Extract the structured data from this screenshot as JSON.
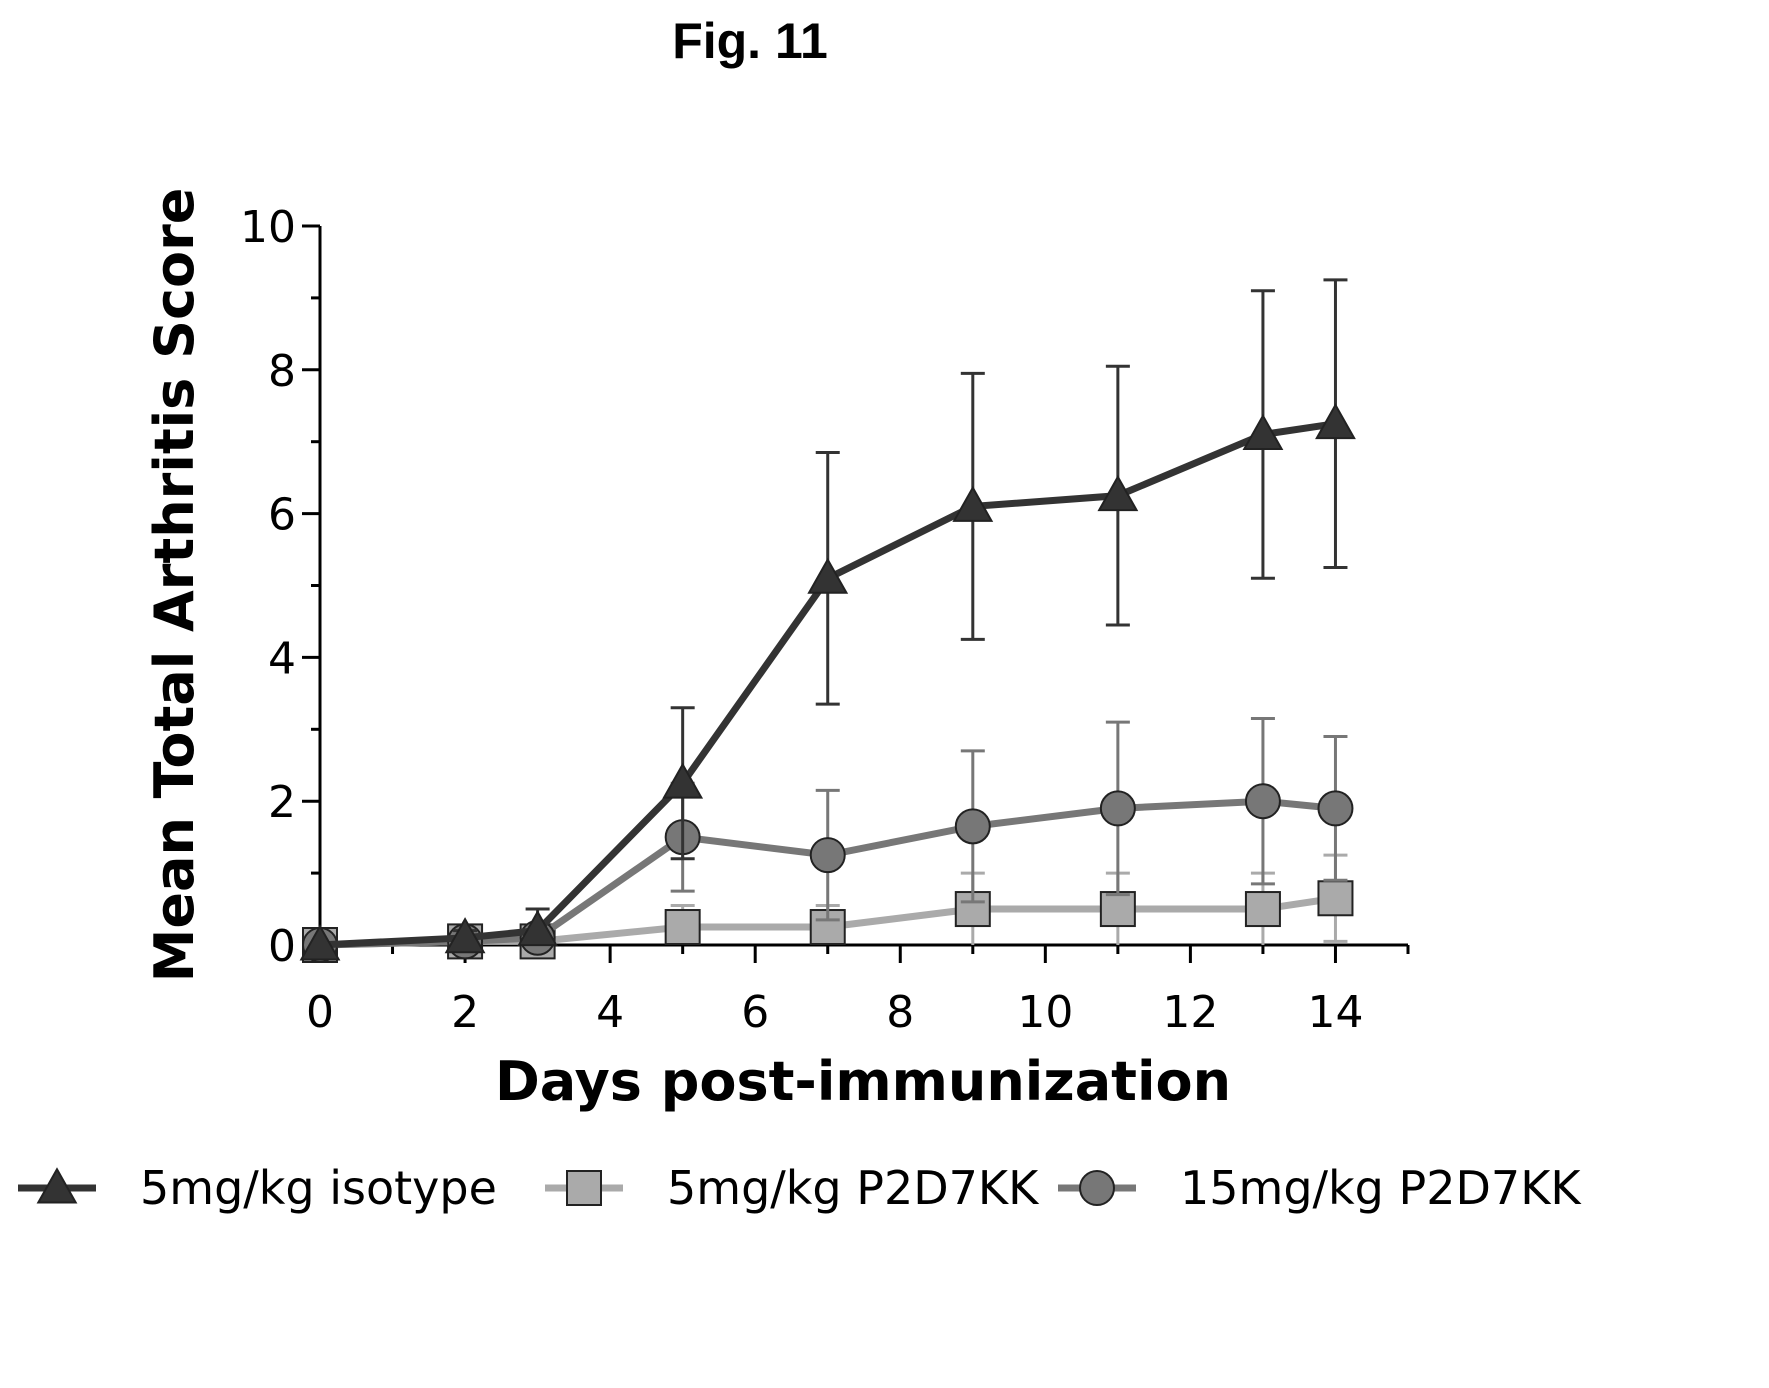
{
  "figure_title": "Fig. 11",
  "chart_data": {
    "type": "line",
    "title": "",
    "xlabel": "Days post-immunization",
    "ylabel": "Mean Total Arthritis Score",
    "xlim": [
      0,
      15
    ],
    "ylim": [
      0,
      10
    ],
    "xticks": [
      0,
      2,
      4,
      6,
      8,
      10,
      12,
      14
    ],
    "yticks": [
      0,
      2,
      4,
      6,
      8,
      10
    ],
    "grid": false,
    "legend_position": "bottom",
    "series": [
      {
        "name": "5mg/kg isotype",
        "marker": "triangle",
        "color": "#333333",
        "x": [
          0,
          2,
          3,
          5,
          7,
          9,
          11,
          13,
          14
        ],
        "y": [
          0,
          0.1,
          0.2,
          2.25,
          5.1,
          6.1,
          6.25,
          7.1,
          7.25
        ],
        "error": [
          0,
          0.1,
          0.3,
          1.05,
          1.75,
          1.85,
          1.8,
          2.0,
          2.0
        ]
      },
      {
        "name": "5mg/kg P2D7KK",
        "marker": "square",
        "color": "#aaaaaa",
        "x": [
          0,
          2,
          3,
          5,
          7,
          9,
          11,
          13,
          14
        ],
        "y": [
          0,
          0.05,
          0.05,
          0.25,
          0.25,
          0.5,
          0.5,
          0.5,
          0.65
        ],
        "error": [
          0,
          0.05,
          0.05,
          0.3,
          0.3,
          0.5,
          0.5,
          0.5,
          0.6
        ]
      },
      {
        "name": "15mg/kg P2D7KK",
        "marker": "circle",
        "color": "#777777",
        "x": [
          0,
          2,
          3,
          5,
          7,
          9,
          11,
          13,
          14
        ],
        "y": [
          0,
          0.05,
          0.1,
          1.5,
          1.25,
          1.65,
          1.9,
          2.0,
          1.9
        ],
        "error": [
          0,
          0.05,
          0.1,
          0.75,
          0.9,
          1.05,
          1.2,
          1.15,
          1.0
        ]
      }
    ]
  }
}
